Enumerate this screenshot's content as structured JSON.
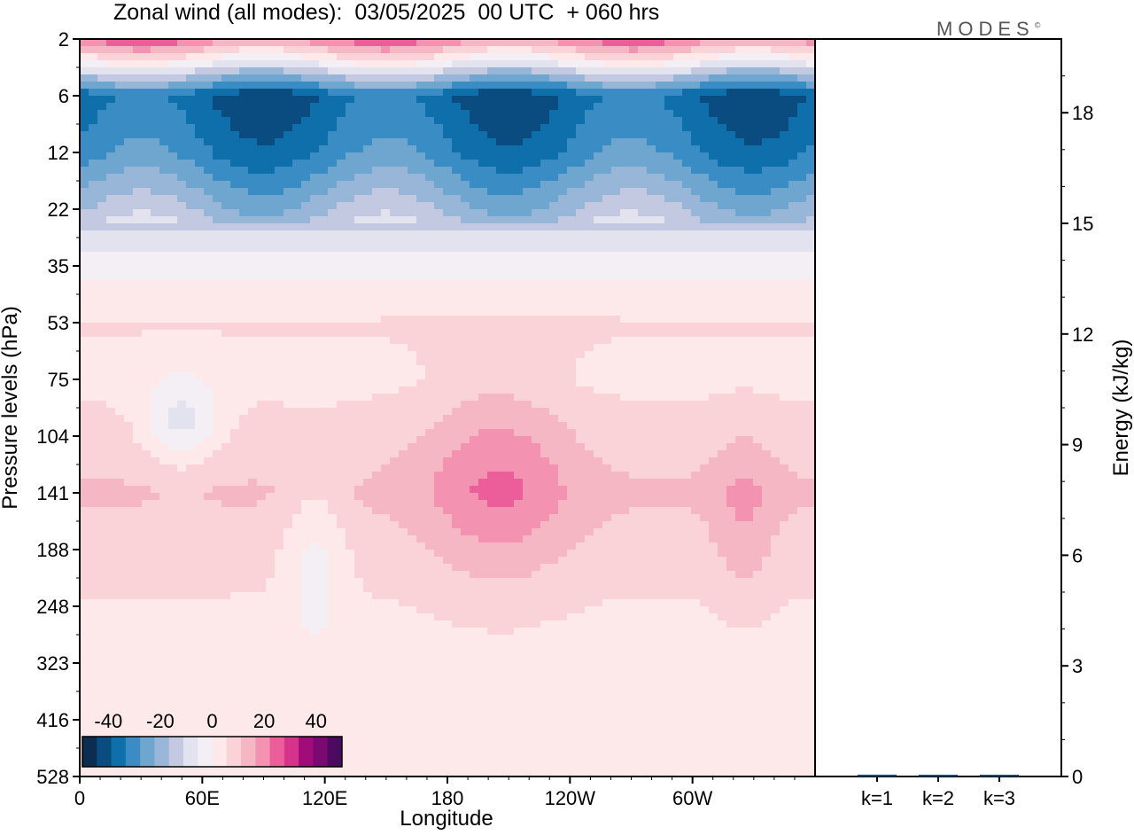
{
  "chart_data": {
    "type": "heatmap",
    "title": "Zonal wind (all modes):  03/05/2025  00 UTC  + 060 hrs",
    "logo": "MODES",
    "xlabel": "Longitude",
    "ylabel": "Pressure levels (hPa)",
    "y2label": "Energy (kJ/kg)",
    "x_ticks": [
      "0",
      "60E",
      "120E",
      "180",
      "120W",
      "60W"
    ],
    "x_tick_values": [
      0,
      60,
      120,
      180,
      240,
      300
    ],
    "xlim": [
      0,
      360
    ],
    "y_ticks": [
      "2",
      "6",
      "12",
      "22",
      "35",
      "53",
      "75",
      "104",
      "141",
      "188",
      "248",
      "323",
      "416",
      "528"
    ],
    "y2_ticks": [
      "0",
      "3",
      "6",
      "9",
      "12",
      "15",
      "18"
    ],
    "y2_tick_values": [
      0,
      3,
      6,
      9,
      12,
      15,
      18
    ],
    "y2lim": [
      0,
      20
    ],
    "colorbar": {
      "tick_labels": [
        "-40",
        "-20",
        "0",
        "20",
        "40"
      ],
      "tick_values": [
        -40,
        -20,
        0,
        20,
        40
      ],
      "range": [
        -50,
        50
      ],
      "colors": [
        "#0d2d4f",
        "#0a4c80",
        "#0e6faa",
        "#3a8cc4",
        "#6ea6cf",
        "#98b6d8",
        "#c3c9e0",
        "#e3e3ef",
        "#f4eef5",
        "#fde8ea",
        "#fad3d9",
        "#f6b7c5",
        "#f493b1",
        "#ec5e9a",
        "#d6348a",
        "#a10c7a",
        "#7a0a72",
        "#4a0a5e"
      ]
    },
    "energy_bars": {
      "categories": [
        "k=1",
        "k=2",
        "k=3"
      ],
      "values": [
        0.05,
        0.02,
        0.01
      ]
    },
    "wind_profile_by_level": {
      "levels_hPa": [
        2,
        6,
        12,
        22,
        35,
        53,
        75,
        104,
        141,
        188,
        248,
        323,
        416,
        528
      ],
      "typical_zonal_wind": [
        22,
        -38,
        -32,
        -18,
        -2,
        6,
        4,
        8,
        12,
        8,
        5,
        3,
        1,
        0
      ]
    }
  }
}
